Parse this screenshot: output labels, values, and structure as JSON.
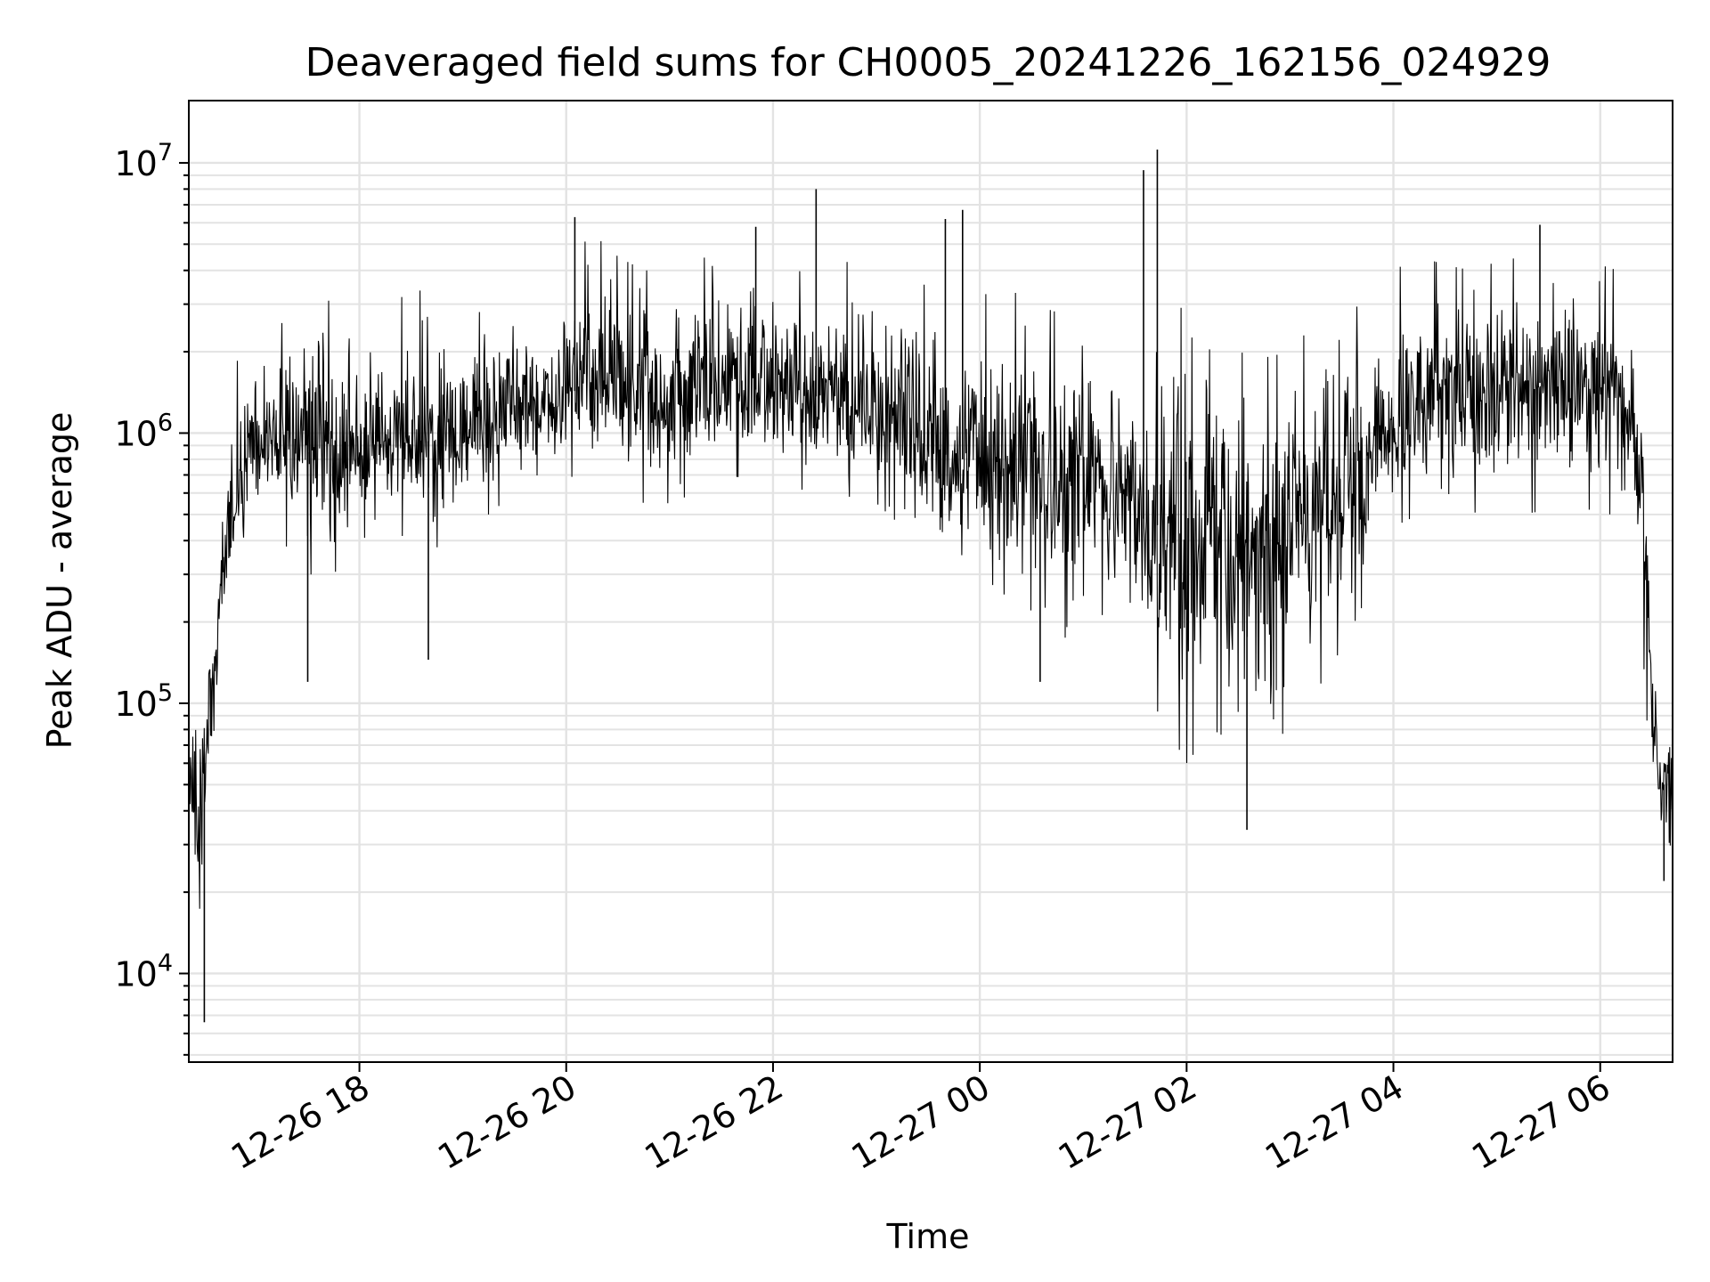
{
  "chart_data": {
    "type": "line",
    "title": "Deaveraged field sums for CH0005_20241226_162156_024929",
    "xlabel": "Time",
    "ylabel": "Peak ADU - average",
    "yscale": "log",
    "ylim": [
      4700,
      17000000
    ],
    "xlim": [
      "12-26 16:21",
      "12-27 06:42"
    ],
    "grid": true,
    "line_color": "#000000",
    "x_ticks": [
      "12-26 18",
      "12-26 20",
      "12-26 22",
      "12-27 00",
      "12-27 02",
      "12-27 04",
      "12-27 06"
    ],
    "y_ticks": [
      {
        "base": "10",
        "exp": "4",
        "value": 10000
      },
      {
        "base": "10",
        "exp": "5",
        "value": 100000
      },
      {
        "base": "10",
        "exp": "6",
        "value": 1000000
      },
      {
        "base": "10",
        "exp": "7",
        "value": 10000000
      }
    ],
    "series": [
      {
        "x": [
          "12-26 16:21",
          "12-26 16:26",
          "12-26 16:30",
          "12-26 16:35",
          "12-26 16:40",
          "12-26 16:50",
          "12-26 17:00",
          "12-26 17:15",
          "12-26 17:30",
          "12-26 17:45",
          "12-26 18:00",
          "12-26 18:15",
          "12-26 18:30",
          "12-26 18:45",
          "12-26 19:00",
          "12-26 19:15",
          "12-26 19:30",
          "12-26 19:45",
          "12-26 20:00",
          "12-26 20:15",
          "12-26 20:30",
          "12-26 20:45",
          "12-26 21:00",
          "12-26 21:15",
          "12-26 21:30",
          "12-26 21:45",
          "12-26 22:00",
          "12-26 22:15",
          "12-26 22:30",
          "12-26 22:45",
          "12-26 23:00",
          "12-26 23:15",
          "12-26 23:30",
          "12-26 23:45",
          "12-27 00:00",
          "12-27 00:15",
          "12-27 00:30",
          "12-27 00:45",
          "12-27 01:00",
          "12-27 01:15",
          "12-27 01:30",
          "12-27 01:45",
          "12-27 02:00",
          "12-27 02:15",
          "12-27 02:30",
          "12-27 02:45",
          "12-27 03:00",
          "12-27 03:15",
          "12-27 03:30",
          "12-27 03:45",
          "12-27 04:00",
          "12-27 04:15",
          "12-27 04:30",
          "12-27 04:45",
          "12-27 05:00",
          "12-27 05:15",
          "12-27 05:30",
          "12-27 05:45",
          "12-27 06:00",
          "12-27 06:10",
          "12-27 06:20",
          "12-27 06:25",
          "12-27 06:30",
          "12-27 06:35",
          "12-27 06:42"
        ],
        "values": [
          50000,
          40000,
          60000,
          110000,
          300000,
          600000,
          900000,
          900000,
          850000,
          800000,
          900000,
          950000,
          1000000,
          900000,
          1000000,
          1100000,
          1200000,
          1250000,
          1400000,
          1500000,
          1500000,
          1400000,
          1300000,
          1400000,
          1500000,
          1450000,
          1450000,
          1400000,
          1350000,
          1300000,
          1200000,
          1100000,
          900000,
          800000,
          800000,
          750000,
          700000,
          650000,
          700000,
          600000,
          500000,
          450000,
          400000,
          450000,
          400000,
          380000,
          420000,
          500000,
          600000,
          800000,
          1100000,
          1300000,
          1400000,
          1400000,
          1450000,
          1500000,
          1550000,
          1500000,
          1450000,
          1400000,
          1200000,
          500000,
          100000,
          50000,
          50000
        ],
        "min_values": [
          30000,
          7000,
          25000,
          35000,
          200000,
          380000,
          500000,
          400000,
          300000,
          300000,
          400000,
          450000,
          400000,
          350000,
          450000,
          500000,
          600000,
          620000,
          700000,
          650000,
          650000,
          550000,
          550000,
          600000,
          700000,
          680000,
          650000,
          620000,
          600000,
          580000,
          550000,
          450000,
          280000,
          300000,
          300000,
          250000,
          220000,
          150000,
          250000,
          200000,
          120000,
          90000,
          60000,
          80000,
          70000,
          40000,
          100000,
          110000,
          160000,
          250000,
          450000,
          500000,
          450000,
          500000,
          550000,
          500000,
          520000,
          550000,
          500000,
          500000,
          450000,
          150000,
          40000,
          30000,
          23000
        ],
        "max_values": [
          90000,
          110000,
          140000,
          220000,
          800000,
          2000000,
          2500000,
          3000000,
          3500000,
          3000000,
          3000000,
          3000000,
          3300000,
          3500000,
          3500000,
          3600000,
          3800000,
          4000000,
          4200000,
          5500000,
          4500000,
          4000000,
          4000000,
          5000000,
          5200000,
          4500000,
          4300000,
          4500000,
          5000000,
          4200000,
          4000000,
          3800000,
          3500000,
          3000000,
          3200000,
          3500000,
          3000000,
          2800000,
          2800000,
          2400000,
          2000000,
          8000000,
          2200000,
          2500000,
          2000000,
          1900000,
          2000000,
          2600000,
          2600000,
          3200000,
          4000000,
          4500000,
          4200000,
          4000000,
          4300000,
          4500000,
          4800000,
          4300000,
          4200000,
          4000000,
          3800000,
          1800000,
          200000,
          90000,
          90000
        ],
        "spikes": [
          {
            "x": "12-26 16:30",
            "value": 6600
          },
          {
            "x": "12-26 17:30",
            "value": 120000
          },
          {
            "x": "12-26 18:40",
            "value": 145000
          },
          {
            "x": "12-26 20:05",
            "value": 6300000
          },
          {
            "x": "12-26 21:50",
            "value": 5800000
          },
          {
            "x": "12-26 22:25",
            "value": 8000000
          },
          {
            "x": "12-26 23:40",
            "value": 6200000
          },
          {
            "x": "12-26 23:50",
            "value": 6700000
          },
          {
            "x": "12-27 00:35",
            "value": 120000
          },
          {
            "x": "12-27 01:35",
            "value": 9400000
          },
          {
            "x": "12-27 01:43",
            "value": 11200000
          },
          {
            "x": "12-27 02:35",
            "value": 34000
          },
          {
            "x": "12-27 05:25",
            "value": 5900000
          },
          {
            "x": "12-27 06:37",
            "value": 22000
          }
        ]
      }
    ]
  }
}
